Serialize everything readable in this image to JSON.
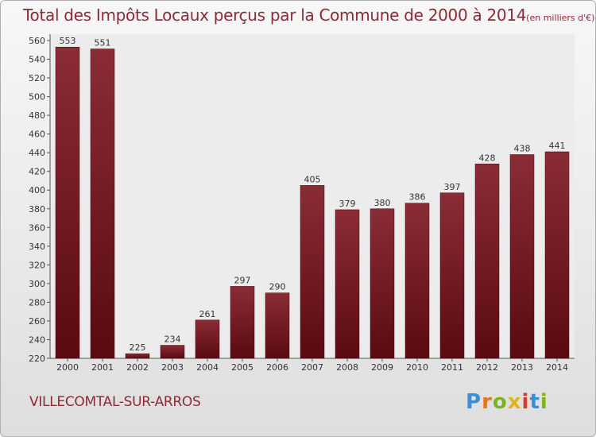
{
  "chart_data": {
    "type": "bar",
    "title": "Total des Impôts Locaux perçus par la Commune de 2000 à 2014",
    "unit_note": "(en milliers d'€)",
    "categories": [
      "2000",
      "2001",
      "2002",
      "2003",
      "2004",
      "2005",
      "2006",
      "2007",
      "2008",
      "2009",
      "2010",
      "2011",
      "2012",
      "2013",
      "2014"
    ],
    "values": [
      553,
      551,
      225,
      234,
      261,
      297,
      290,
      405,
      379,
      380,
      386,
      397,
      428,
      438,
      441
    ],
    "ylim": [
      220,
      560
    ],
    "yticks": [
      220,
      240,
      260,
      280,
      300,
      320,
      340,
      360,
      380,
      400,
      420,
      440,
      460,
      480,
      500,
      520,
      540,
      560
    ],
    "grid": false,
    "bar_color_top": "#8a2c36",
    "bar_color_bottom": "#5a0a10"
  },
  "commune_name": "VILLECOMTAL-SUR-ARROS",
  "logo": {
    "letters": [
      "P",
      "r",
      "o",
      "x",
      "i",
      "t",
      "i"
    ],
    "colors": [
      "#3a8fd6",
      "#e8731e",
      "#7ab51d",
      "#e2b21b",
      "#d63a2f",
      "#3a8fd6",
      "#7ab51d"
    ]
  }
}
